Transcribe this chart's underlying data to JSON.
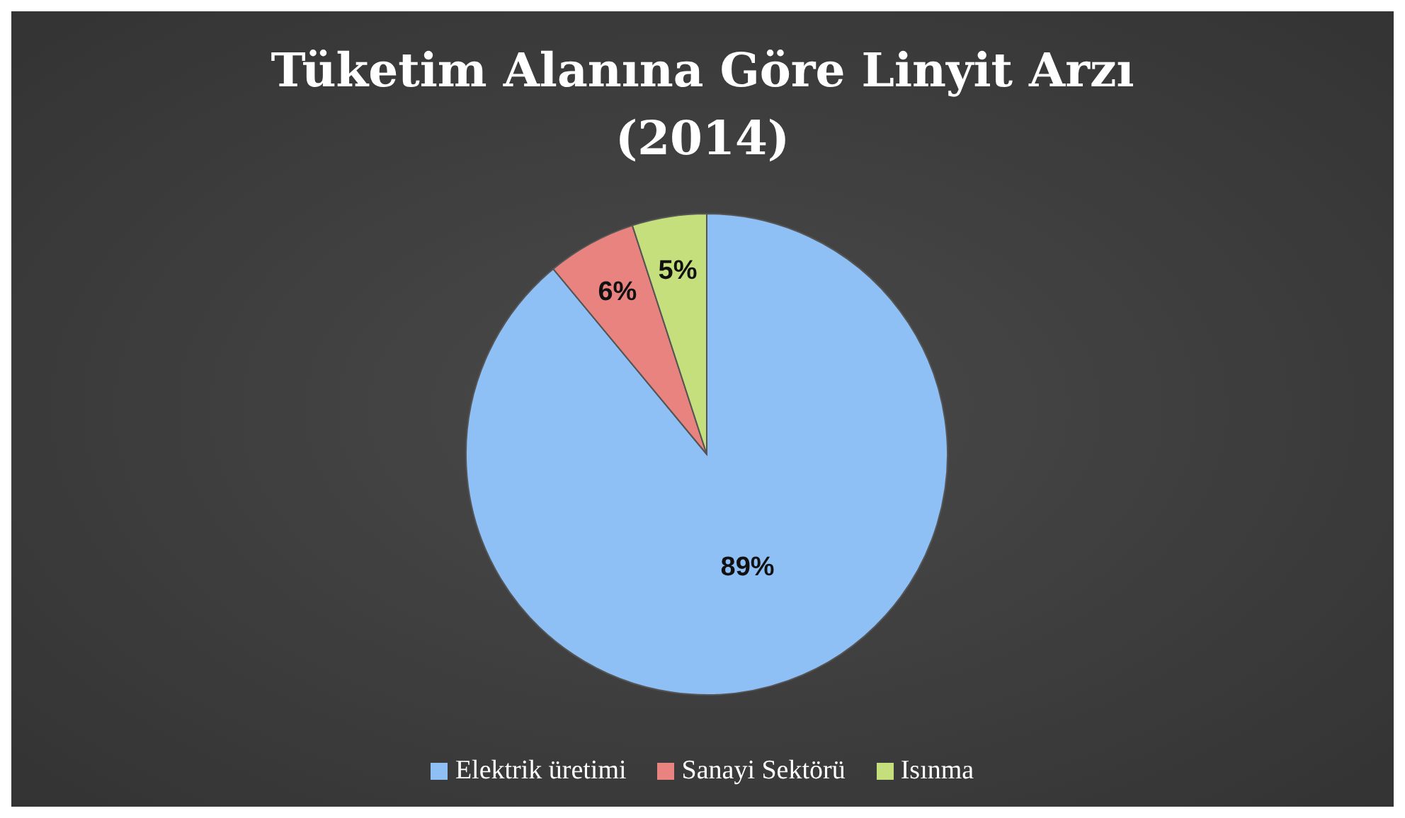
{
  "chart_data": {
    "type": "pie",
    "title": "Tüketim Alanına Göre Linyit Arzı\n(2014)",
    "categories": [
      "Elektrik üretimi",
      "Sanayi Sektörü",
      "Isınma"
    ],
    "values": [
      89,
      6,
      5
    ],
    "colors": [
      "#8fc0f5",
      "#e8837f",
      "#c6df7d"
    ],
    "value_labels": [
      "89%",
      "6%",
      "5%"
    ],
    "legend": "bottom"
  }
}
